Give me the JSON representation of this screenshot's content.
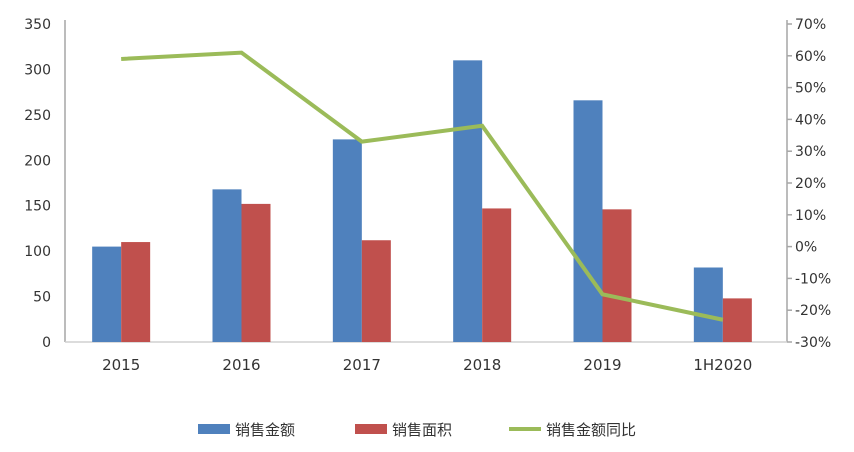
{
  "chart_data": {
    "type": "bar",
    "title": "",
    "categories": [
      "2015",
      "2016",
      "2017",
      "2018",
      "2019",
      "1H2020"
    ],
    "series": [
      {
        "name": "销售金额",
        "type": "bar",
        "axis": "left",
        "color": "#4f81bd",
        "values": [
          105,
          168,
          223,
          310,
          266,
          82
        ]
      },
      {
        "name": "销售面积",
        "type": "bar",
        "axis": "left",
        "color": "#c0504d",
        "values": [
          110,
          152,
          112,
          147,
          146,
          48
        ]
      },
      {
        "name": "销售金额同比",
        "type": "line",
        "axis": "right",
        "color": "#9bbb59",
        "values": [
          59,
          61,
          33,
          38,
          -15,
          -23
        ]
      }
    ],
    "y_left": {
      "range": [
        0,
        350
      ],
      "ticks": [
        "0",
        "50",
        "100",
        "150",
        "200",
        "250",
        "300",
        "350"
      ]
    },
    "y_right": {
      "range": [
        -30,
        70
      ],
      "unit": "%",
      "ticks": [
        "-30%",
        "-20%",
        "-10%",
        "0%",
        "10%",
        "20%",
        "30%",
        "40%",
        "50%",
        "60%",
        "70%"
      ]
    },
    "grid": false,
    "legend_position": "bottom"
  }
}
